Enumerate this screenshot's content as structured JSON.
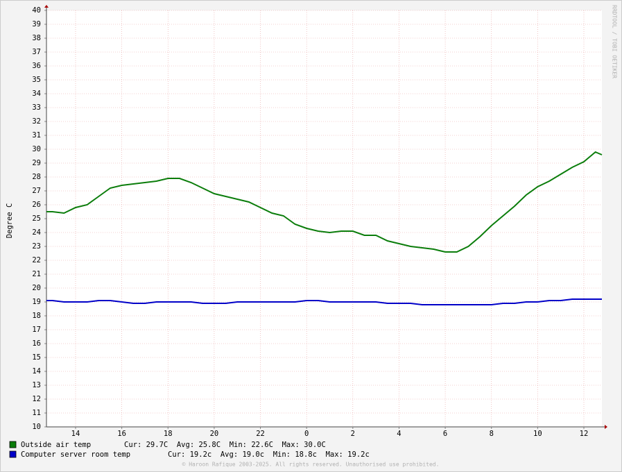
{
  "chart_data": {
    "type": "line",
    "ylabel": "Degree C",
    "credit": "RRDTOOL / TOBI OETIKER",
    "footer": "© Haroon Rafique 2003-2025. All rights reserved. Unauthorised use prohibited.",
    "x": [
      12.74,
      13,
      13.5,
      14,
      14.5,
      15,
      15.5,
      16,
      16.5,
      17,
      17.5,
      18,
      18.5,
      19,
      19.5,
      20,
      20.5,
      21,
      21.5,
      22,
      22.5,
      23,
      23.5,
      24,
      24.5,
      25,
      25.5,
      26,
      26.5,
      27,
      27.5,
      28,
      28.5,
      29,
      29.5,
      30,
      30.5,
      31,
      31.5,
      32,
      32.5,
      33,
      33.5,
      34,
      34.5,
      35,
      35.5,
      36,
      36.5,
      36.78
    ],
    "series": [
      {
        "name": "Outside air temp",
        "color": "#0b7d0b",
        "stats": "Cur: 29.7C  Avg: 25.8C  Min: 22.6C  Max: 30.0C",
        "values": [
          25.5,
          25.5,
          25.4,
          25.8,
          26.0,
          26.6,
          27.2,
          27.4,
          27.5,
          27.6,
          27.7,
          27.9,
          27.9,
          27.6,
          27.2,
          26.8,
          26.6,
          26.4,
          26.2,
          25.8,
          25.4,
          25.2,
          24.6,
          24.3,
          24.1,
          24.0,
          24.1,
          24.1,
          23.8,
          23.8,
          23.4,
          23.2,
          23.0,
          22.9,
          22.8,
          22.6,
          22.6,
          23.0,
          23.7,
          24.5,
          25.2,
          25.9,
          26.7,
          27.3,
          27.7,
          28.2,
          28.7,
          29.1,
          29.8,
          29.6
        ]
      },
      {
        "name": "Computer server room temp",
        "color": "#0000c8",
        "stats": "Cur: 19.2c  Avg: 19.0c  Min: 18.8c  Max: 19.2c",
        "values": [
          19.1,
          19.1,
          19.0,
          19.0,
          19.0,
          19.1,
          19.1,
          19.0,
          18.9,
          18.9,
          19.0,
          19.0,
          19.0,
          19.0,
          18.9,
          18.9,
          18.9,
          19.0,
          19.0,
          19.0,
          19.0,
          19.0,
          19.0,
          19.1,
          19.1,
          19.0,
          19.0,
          19.0,
          19.0,
          19.0,
          18.9,
          18.9,
          18.9,
          18.8,
          18.8,
          18.8,
          18.8,
          18.8,
          18.8,
          18.8,
          18.9,
          18.9,
          19.0,
          19.0,
          19.1,
          19.1,
          19.2,
          19.2,
          19.2,
          19.2
        ]
      }
    ],
    "xlim": [
      12.74,
      36.78
    ],
    "xticks": [
      14,
      16,
      18,
      20,
      22,
      {
        "value": 24,
        "label": "0"
      },
      {
        "value": 26,
        "label": "2"
      },
      {
        "value": 28,
        "label": "4"
      },
      {
        "value": 30,
        "label": "6"
      },
      {
        "value": 32,
        "label": "8"
      },
      {
        "value": 34,
        "label": "10"
      },
      {
        "value": 36,
        "label": "12"
      }
    ],
    "ylim": [
      10,
      40
    ],
    "yticks": [
      10,
      11,
      12,
      13,
      14,
      15,
      16,
      17,
      18,
      19,
      20,
      21,
      22,
      23,
      24,
      25,
      26,
      27,
      28,
      29,
      30,
      31,
      32,
      33,
      34,
      35,
      36,
      37,
      38,
      39,
      40
    ],
    "grid": true
  }
}
